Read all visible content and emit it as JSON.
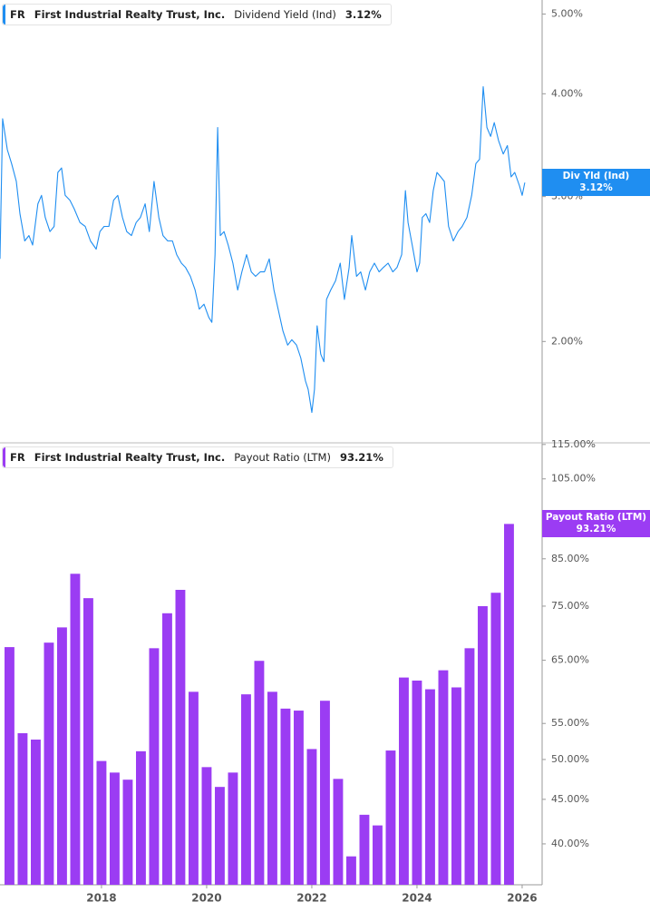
{
  "chart_data": [
    {
      "type": "line",
      "ticker": "FR",
      "company": "First Industrial Realty Trust, Inc.",
      "end_label": "Div Yld (Ind)",
      "current": {
        "value": 3.12,
        "label": "3.12%"
      },
      "log_scale": true,
      "xlim": [
        2016.07,
        2026.38
      ],
      "ylim": [
        1.51,
        5.2
      ],
      "yticks": [
        {
          "value": 5,
          "label": "5.00%"
        },
        {
          "value": 4,
          "label": "4.00%"
        },
        {
          "value": 3,
          "label": "3.00%"
        },
        {
          "value": 2,
          "label": "2.00%"
        }
      ],
      "x": [
        2016.07,
        2016.12,
        2016.21,
        2016.29,
        2016.38,
        2016.45,
        2016.54,
        2016.62,
        2016.69,
        2016.79,
        2016.86,
        2016.93,
        2017.02,
        2017.1,
        2017.17,
        2017.24,
        2017.31,
        2017.4,
        2017.48,
        2017.59,
        2017.69,
        2017.79,
        2017.9,
        2017.97,
        2018.05,
        2018.14,
        2018.23,
        2018.31,
        2018.4,
        2018.48,
        2018.57,
        2018.66,
        2018.74,
        2018.83,
        2018.91,
        2019.0,
        2019.09,
        2019.17,
        2019.26,
        2019.35,
        2019.43,
        2019.52,
        2019.6,
        2019.69,
        2019.78,
        2019.86,
        2019.95,
        2020.04,
        2020.1,
        2020.16,
        2020.21,
        2020.26,
        2020.33,
        2020.41,
        2020.5,
        2020.59,
        2020.67,
        2020.76,
        2020.85,
        2020.93,
        2021.02,
        2021.1,
        2021.19,
        2021.28,
        2021.36,
        2021.45,
        2021.54,
        2021.62,
        2021.71,
        2021.79,
        2021.88,
        2021.93,
        2022.0,
        2022.05,
        2022.1,
        2022.17,
        2022.23,
        2022.28,
        2022.36,
        2022.45,
        2022.54,
        2022.62,
        2022.71,
        2022.76,
        2022.85,
        2022.93,
        2023.02,
        2023.1,
        2023.19,
        2023.28,
        2023.36,
        2023.45,
        2023.54,
        2023.62,
        2023.71,
        2023.78,
        2023.83,
        2023.91,
        2024.0,
        2024.05,
        2024.1,
        2024.17,
        2024.24,
        2024.31,
        2024.38,
        2024.45,
        2024.52,
        2024.6,
        2024.69,
        2024.78,
        2024.86,
        2024.95,
        2025.04,
        2025.12,
        2025.19,
        2025.26,
        2025.33,
        2025.4,
        2025.47,
        2025.55,
        2025.64,
        2025.72,
        2025.79,
        2025.86,
        2025.95,
        2026.0,
        2026.05
      ],
      "series": [
        {
          "name": "Dividend Yield (Ind)",
          "color": "#1f8ef1",
          "values": [
            2.52,
            3.73,
            3.42,
            3.29,
            3.13,
            2.86,
            2.65,
            2.69,
            2.62,
            2.94,
            3.01,
            2.83,
            2.72,
            2.76,
            3.21,
            3.25,
            3.01,
            2.97,
            2.9,
            2.79,
            2.76,
            2.65,
            2.59,
            2.72,
            2.76,
            2.76,
            2.97,
            3.01,
            2.83,
            2.72,
            2.69,
            2.79,
            2.83,
            2.94,
            2.72,
            3.13,
            2.83,
            2.69,
            2.65,
            2.65,
            2.55,
            2.49,
            2.46,
            2.4,
            2.31,
            2.19,
            2.22,
            2.14,
            2.11,
            2.55,
            3.64,
            2.69,
            2.72,
            2.62,
            2.49,
            2.31,
            2.43,
            2.55,
            2.43,
            2.4,
            2.43,
            2.43,
            2.52,
            2.31,
            2.19,
            2.06,
            1.98,
            2.01,
            1.98,
            1.91,
            1.79,
            1.75,
            1.64,
            1.75,
            2.09,
            1.93,
            1.89,
            2.25,
            2.31,
            2.37,
            2.49,
            2.25,
            2.46,
            2.69,
            2.4,
            2.43,
            2.31,
            2.43,
            2.49,
            2.43,
            2.46,
            2.49,
            2.43,
            2.46,
            2.55,
            3.05,
            2.79,
            2.62,
            2.43,
            2.49,
            2.83,
            2.86,
            2.79,
            3.05,
            3.21,
            3.17,
            3.13,
            2.76,
            2.65,
            2.72,
            2.76,
            2.83,
            3.01,
            3.29,
            3.33,
            4.08,
            3.64,
            3.55,
            3.69,
            3.51,
            3.38,
            3.46,
            3.17,
            3.21,
            3.09,
            3.01,
            3.12
          ]
        }
      ]
    },
    {
      "type": "bar",
      "ticker": "FR",
      "company": "First Industrial Realty Trust, Inc.",
      "end_label": "Payout Ratio (LTM)",
      "current": {
        "value": 93.21,
        "label": "93.21%"
      },
      "log_scale": true,
      "xlim": [
        2016.07,
        2026.38
      ],
      "ylim": [
        35.9,
        115.5
      ],
      "xticks": [
        2018,
        2020,
        2022,
        2024,
        2026
      ],
      "yticks": [
        {
          "value": 115,
          "label": "115.00%"
        },
        {
          "value": 105,
          "label": "105.00%"
        },
        {
          "value": 85,
          "label": "85.00%"
        },
        {
          "value": 75,
          "label": "75.00%"
        },
        {
          "value": 65,
          "label": "65.00%"
        },
        {
          "value": 55,
          "label": "55.00%"
        },
        {
          "value": 50,
          "label": "50.00%"
        },
        {
          "value": 45,
          "label": "45.00%"
        },
        {
          "value": 40,
          "label": "40.00%"
        }
      ],
      "x": [
        2016.25,
        2016.5,
        2016.75,
        2017,
        2017.25,
        2017.5,
        2017.75,
        2018,
        2018.25,
        2018.5,
        2018.75,
        2019,
        2019.25,
        2019.5,
        2019.75,
        2020,
        2020.25,
        2020.5,
        2020.75,
        2021,
        2021.25,
        2021.5,
        2021.75,
        2022,
        2022.25,
        2022.5,
        2022.75,
        2023,
        2023.25,
        2023.5,
        2023.75,
        2024,
        2024.25,
        2024.5,
        2024.75,
        2025,
        2025.25,
        2025.5,
        2025.75
      ],
      "series": [
        {
          "name": "Payout Ratio (LTM)",
          "color": "#9b3cf3",
          "values": [
            67.3,
            53.6,
            52.7,
            68.1,
            70.9,
            81.7,
            76.6,
            49.8,
            48.3,
            47.4,
            51.1,
            67.1,
            73.6,
            78.3,
            59.8,
            49.0,
            46.5,
            48.3,
            59.4,
            64.9,
            59.8,
            57.2,
            56.9,
            51.4,
            58.4,
            47.5,
            38.7,
            43.2,
            42.0,
            51.2,
            62.1,
            61.6,
            60.2,
            63.3,
            60.5,
            67.1,
            75.0,
            77.7,
            93.21
          ]
        }
      ]
    }
  ]
}
